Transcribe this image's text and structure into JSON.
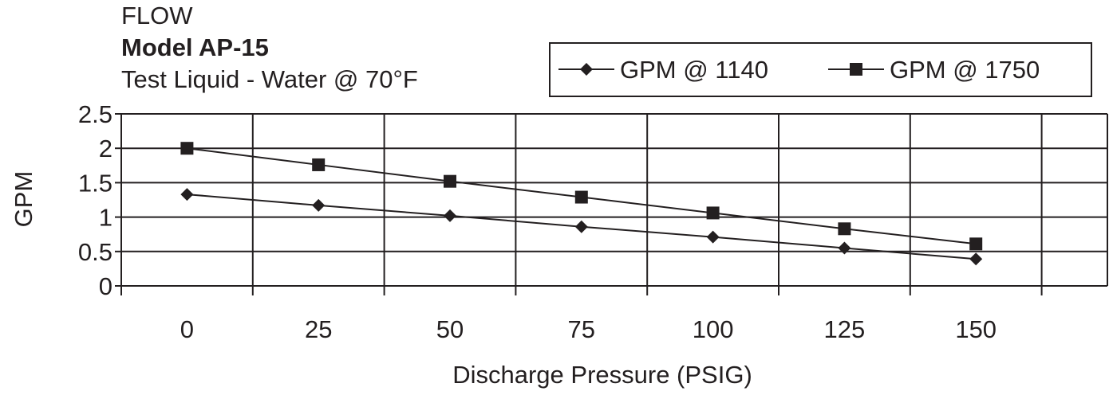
{
  "chart_data": {
    "type": "line",
    "title": "FLOW",
    "subtitle_lines": [
      "Model AP-15",
      "Test Liquid - Water @ 70°F"
    ],
    "xlabel": "Discharge Pressure (PSIG)",
    "ylabel": "GPM",
    "x": [
      0,
      25,
      50,
      75,
      100,
      125,
      150
    ],
    "x_tick_labels": [
      "0",
      "25",
      "50",
      "75",
      "100",
      "125",
      "150"
    ],
    "y_tick_labels": [
      "0",
      "0.5",
      "1",
      "1.5",
      "2",
      "2.5"
    ],
    "ylim": [
      0,
      2.5
    ],
    "grid": true,
    "legend_position": "top-right",
    "series": [
      {
        "name": "GPM @ 1140",
        "marker": "diamond",
        "values": [
          1.33,
          1.17,
          1.02,
          0.86,
          0.71,
          0.55,
          0.39
        ]
      },
      {
        "name": "GPM @ 1750",
        "marker": "square",
        "values": [
          2.0,
          1.76,
          1.52,
          1.29,
          1.06,
          0.83,
          0.61
        ]
      }
    ]
  },
  "colors": {
    "ink": "#231f20",
    "background": "#ffffff"
  }
}
